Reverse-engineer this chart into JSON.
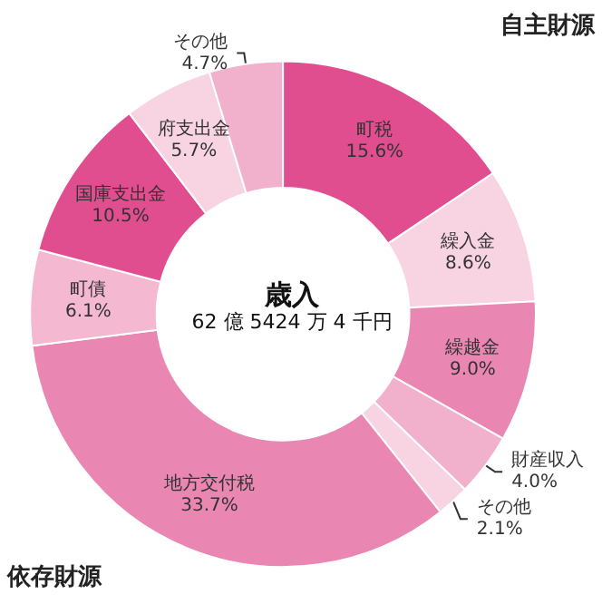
{
  "chart_data": {
    "type": "donut",
    "title": "歳入",
    "subtitle": "62 億 5424 万 4 千円",
    "categories": [
      "町税",
      "繰入金",
      "繰越金",
      "財産収入",
      "その他",
      "地方交付税",
      "町債",
      "国庫支出金",
      "府支出金",
      "その他"
    ],
    "values": [
      15.6,
      8.6,
      9.0,
      4.0,
      2.1,
      33.7,
      6.1,
      10.5,
      5.7,
      4.7
    ],
    "value_labels": [
      "15.6%",
      "8.6%",
      "9.0%",
      "4.0%",
      "2.1%",
      "33.7%",
      "6.1%",
      "10.5%",
      "5.7%",
      "4.7%"
    ],
    "colors": [
      "#e14e90",
      "#f8d4e3",
      "#ea86b2",
      "#f1b0cc",
      "#f8d4e3",
      "#ea86b2",
      "#f4b8d1",
      "#e14e90",
      "#f8d4e3",
      "#f1b0cc"
    ],
    "annotations": [
      "自主財源",
      "依存財源"
    ],
    "legend": false
  }
}
